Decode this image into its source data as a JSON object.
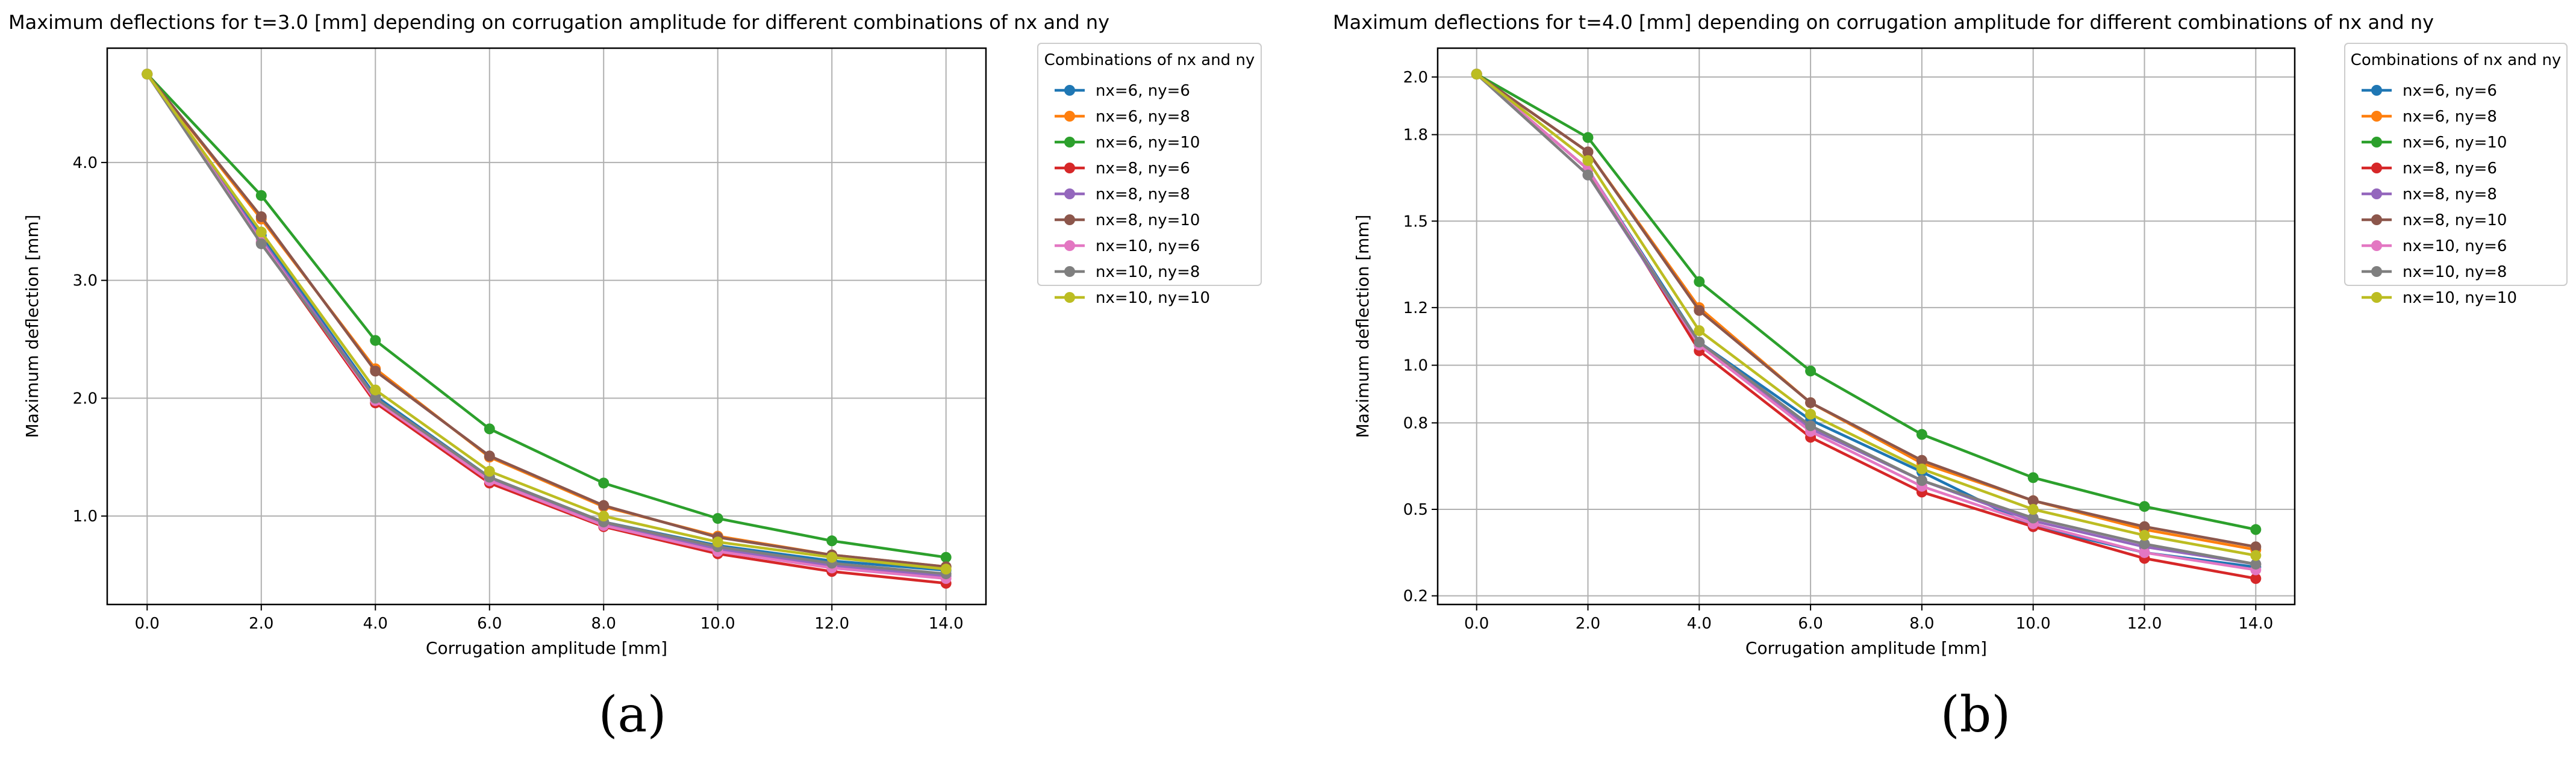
{
  "chart_data": [
    {
      "type": "line",
      "panel_label": "(a)",
      "title": "Maximum deflections for t=3.0 [mm] depending on corrugation amplitude for different combinations of nx and ny",
      "xlabel": "Corrugation amplitude [mm]",
      "ylabel": "Maximum deflection [mm]",
      "x": [
        0,
        2,
        4,
        6,
        8,
        10,
        12,
        14
      ],
      "xticks": [
        0,
        2,
        4,
        6,
        8,
        10,
        12,
        14
      ],
      "xtick_labels": [
        "0.0",
        "2.0",
        "4.0",
        "6.0",
        "8.0",
        "10.0",
        "12.0",
        "14.0"
      ],
      "yticks": [
        1,
        2,
        3,
        4
      ],
      "ytick_labels": [
        "1.0",
        "2.0",
        "3.0",
        "4.0"
      ],
      "xlim": [
        -0.7,
        14.7
      ],
      "ylim": [
        0.25,
        4.97
      ],
      "grid": true,
      "legend_title": "Combinations of nx and ny",
      "legend_position": "outside-right",
      "series": [
        {
          "name": "nx=6, ny=6",
          "color": "#1f77b4",
          "values": [
            4.75,
            3.38,
            2.02,
            1.33,
            0.95,
            0.75,
            0.62,
            0.54
          ]
        },
        {
          "name": "nx=6, ny=8",
          "color": "#ff7f0e",
          "values": [
            4.75,
            3.52,
            2.25,
            1.5,
            1.08,
            0.83,
            0.67,
            0.57
          ]
        },
        {
          "name": "nx=6, ny=10",
          "color": "#2ca02c",
          "values": [
            4.75,
            3.72,
            2.49,
            1.74,
            1.28,
            0.98,
            0.79,
            0.65
          ]
        },
        {
          "name": "nx=8, ny=6",
          "color": "#d62728",
          "values": [
            4.75,
            3.32,
            1.96,
            1.28,
            0.91,
            0.68,
            0.53,
            0.43
          ]
        },
        {
          "name": "nx=8, ny=8",
          "color": "#9467bd",
          "values": [
            4.75,
            3.35,
            2.0,
            1.31,
            0.93,
            0.72,
            0.58,
            0.49
          ]
        },
        {
          "name": "nx=8, ny=10",
          "color": "#8c564b",
          "values": [
            4.75,
            3.54,
            2.23,
            1.51,
            1.09,
            0.82,
            0.67,
            0.57
          ]
        },
        {
          "name": "nx=10, ny=6",
          "color": "#e377c2",
          "values": [
            4.75,
            3.33,
            1.98,
            1.3,
            0.92,
            0.7,
            0.56,
            0.47
          ]
        },
        {
          "name": "nx=10, ny=8",
          "color": "#7f7f7f",
          "values": [
            4.75,
            3.31,
            2.0,
            1.33,
            0.95,
            0.74,
            0.6,
            0.51
          ]
        },
        {
          "name": "nx=10, ny=10",
          "color": "#bcbd22",
          "values": [
            4.75,
            3.41,
            2.07,
            1.38,
            1.0,
            0.78,
            0.65,
            0.55
          ]
        }
      ]
    },
    {
      "type": "line",
      "panel_label": "(b)",
      "title": "Maximum deflections for t=4.0 [mm] depending on corrugation amplitude for different combinations of nx and ny",
      "xlabel": "Corrugation amplitude [mm]",
      "ylabel": "Maximum deflection [mm]",
      "x": [
        0,
        2,
        4,
        6,
        8,
        10,
        12,
        14
      ],
      "xticks": [
        0,
        2,
        4,
        6,
        8,
        10,
        12,
        14
      ],
      "xtick_labels": [
        "0.0",
        "2.0",
        "4.0",
        "6.0",
        "8.0",
        "10.0",
        "12.0",
        "14.0"
      ],
      "yticks": [
        0.2,
        0.5,
        0.8,
        1.0,
        1.2,
        1.5,
        1.8,
        2.0
      ],
      "ytick_labels": [
        "0.2",
        "0.5",
        "0.8",
        "1.0",
        "1.2",
        "1.5",
        "1.8",
        "2.0"
      ],
      "xlim": [
        -0.7,
        14.7
      ],
      "ylim": [
        0.17,
        2.1
      ],
      "grid": true,
      "legend_title": "Combinations of nx and ny",
      "legend_position": "outside-right",
      "series": [
        {
          "name": "nx=6, ny=6",
          "color": "#1f77b4",
          "values": [
            2.01,
            1.68,
            1.08,
            0.81,
            0.63,
            0.44,
            0.35,
            0.3
          ]
        },
        {
          "name": "nx=6, ny=8",
          "color": "#ff7f0e",
          "values": [
            2.01,
            1.74,
            1.2,
            0.87,
            0.66,
            0.53,
            0.43,
            0.36
          ]
        },
        {
          "name": "nx=6, ny=10",
          "color": "#2ca02c",
          "values": [
            2.01,
            1.79,
            1.29,
            0.98,
            0.76,
            0.61,
            0.51,
            0.43
          ]
        },
        {
          "name": "nx=8, ny=6",
          "color": "#d62728",
          "values": [
            2.01,
            1.68,
            1.05,
            0.75,
            0.56,
            0.44,
            0.33,
            0.26
          ]
        },
        {
          "name": "nx=8, ny=8",
          "color": "#9467bd",
          "values": [
            2.01,
            1.66,
            1.07,
            0.78,
            0.6,
            0.46,
            0.37,
            0.31
          ]
        },
        {
          "name": "nx=8, ny=10",
          "color": "#8c564b",
          "values": [
            2.01,
            1.74,
            1.19,
            0.87,
            0.67,
            0.53,
            0.44,
            0.37
          ]
        },
        {
          "name": "nx=10, ny=6",
          "color": "#e377c2",
          "values": [
            2.01,
            1.68,
            1.07,
            0.77,
            0.58,
            0.45,
            0.35,
            0.29
          ]
        },
        {
          "name": "nx=10, ny=8",
          "color": "#7f7f7f",
          "values": [
            2.01,
            1.66,
            1.08,
            0.79,
            0.6,
            0.47,
            0.38,
            0.31
          ]
        },
        {
          "name": "nx=10, ny=10",
          "color": "#bcbd22",
          "values": [
            2.01,
            1.71,
            1.12,
            0.83,
            0.64,
            0.5,
            0.41,
            0.34
          ]
        }
      ]
    }
  ]
}
